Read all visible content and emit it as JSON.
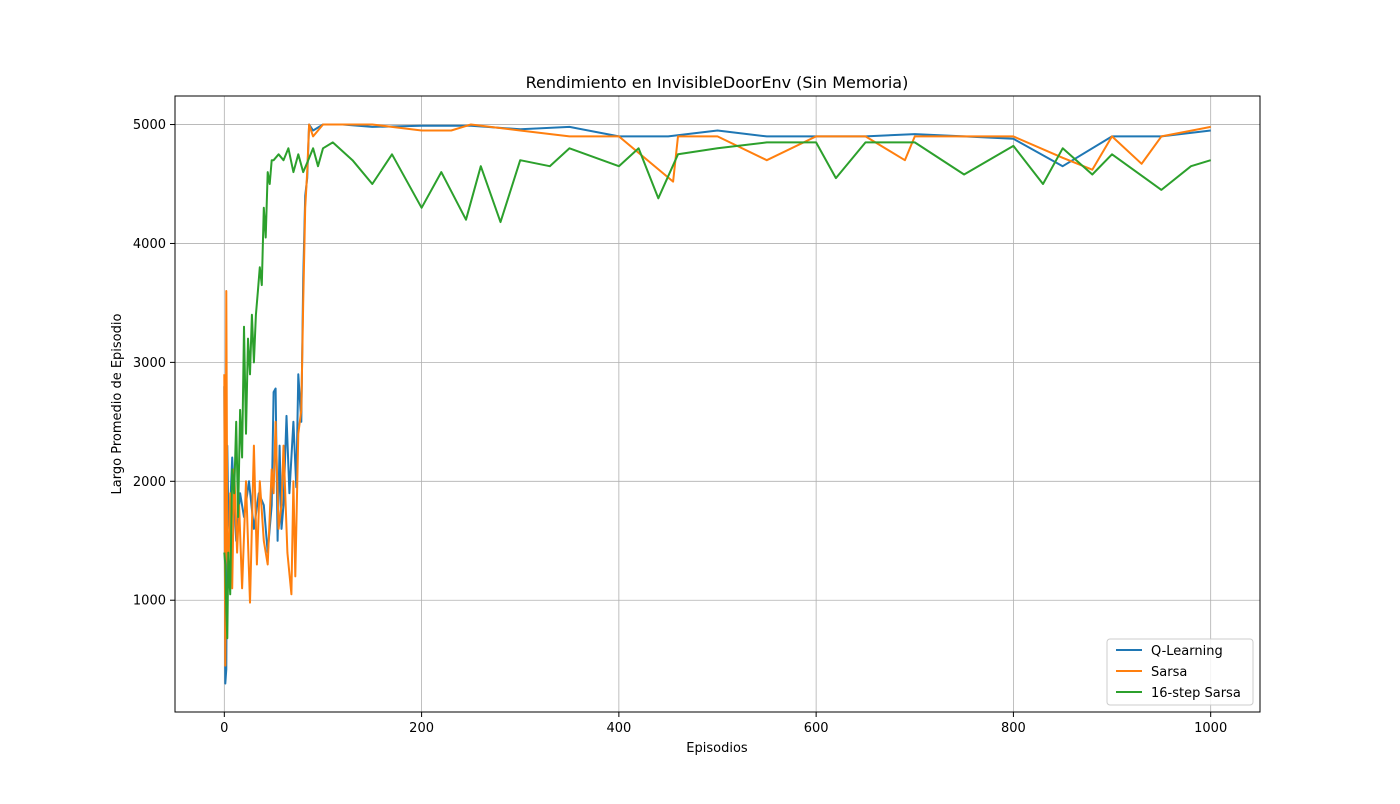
{
  "chart_data": {
    "type": "line",
    "title": "Rendimiento en InvisibleDoorEnv (Sin Memoria)",
    "xlabel": "Episodios",
    "ylabel": "Largo Promedio de Episodio",
    "xlim": [
      -50,
      1050
    ],
    "ylim": [
      60,
      5240
    ],
    "xticks": [
      0,
      200,
      400,
      600,
      800,
      1000
    ],
    "yticks": [
      1000,
      2000,
      3000,
      4000,
      5000
    ],
    "xtick_labels": [
      "0",
      "200",
      "400",
      "600",
      "800",
      "1000"
    ],
    "ytick_labels": [
      "1000",
      "2000",
      "3000",
      "4000",
      "5000"
    ],
    "grid": true,
    "legend_position": "lower-right",
    "series": [
      {
        "name": "Q-Learning",
        "color": "#1f77b4",
        "points": [
          [
            0,
            2800
          ],
          [
            1,
            300
          ],
          [
            2,
            420
          ],
          [
            3,
            2300
          ],
          [
            4,
            1700
          ],
          [
            5,
            1600
          ],
          [
            8,
            2200
          ],
          [
            12,
            1500
          ],
          [
            16,
            1900
          ],
          [
            20,
            1700
          ],
          [
            25,
            2000
          ],
          [
            30,
            1600
          ],
          [
            35,
            1900
          ],
          [
            40,
            1800
          ],
          [
            44,
            1400
          ],
          [
            48,
            1800
          ],
          [
            50,
            2750
          ],
          [
            52,
            2780
          ],
          [
            54,
            1500
          ],
          [
            56,
            2300
          ],
          [
            58,
            1600
          ],
          [
            60,
            1800
          ],
          [
            63,
            2550
          ],
          [
            66,
            1900
          ],
          [
            70,
            2500
          ],
          [
            73,
            1950
          ],
          [
            75,
            2900
          ],
          [
            78,
            2500
          ],
          [
            80,
            3700
          ],
          [
            82,
            4400
          ],
          [
            84,
            4550
          ],
          [
            86,
            5000
          ],
          [
            90,
            4950
          ],
          [
            100,
            5000
          ],
          [
            120,
            5000
          ],
          [
            150,
            4980
          ],
          [
            200,
            4990
          ],
          [
            250,
            4990
          ],
          [
            300,
            4960
          ],
          [
            350,
            4980
          ],
          [
            400,
            4900
          ],
          [
            450,
            4900
          ],
          [
            500,
            4950
          ],
          [
            550,
            4900
          ],
          [
            600,
            4900
          ],
          [
            650,
            4900
          ],
          [
            700,
            4920
          ],
          [
            750,
            4900
          ],
          [
            800,
            4880
          ],
          [
            850,
            4650
          ],
          [
            900,
            4900
          ],
          [
            950,
            4900
          ],
          [
            1000,
            4950
          ]
        ]
      },
      {
        "name": "Sarsa",
        "color": "#ff7f0e",
        "points": [
          [
            0,
            2900
          ],
          [
            1,
            450
          ],
          [
            2,
            3600
          ],
          [
            3,
            1500
          ],
          [
            4,
            1200
          ],
          [
            6,
            1900
          ],
          [
            8,
            1100
          ],
          [
            10,
            2100
          ],
          [
            13,
            1400
          ],
          [
            15,
            1800
          ],
          [
            18,
            1100
          ],
          [
            22,
            2000
          ],
          [
            26,
            980
          ],
          [
            30,
            2300
          ],
          [
            33,
            1300
          ],
          [
            36,
            2000
          ],
          [
            40,
            1500
          ],
          [
            44,
            1300
          ],
          [
            48,
            2100
          ],
          [
            50,
            1900
          ],
          [
            52,
            2500
          ],
          [
            55,
            1600
          ],
          [
            58,
            1800
          ],
          [
            60,
            2300
          ],
          [
            64,
            1400
          ],
          [
            68,
            1050
          ],
          [
            70,
            2000
          ],
          [
            72,
            1200
          ],
          [
            75,
            2400
          ],
          [
            78,
            2600
          ],
          [
            80,
            3500
          ],
          [
            82,
            4300
          ],
          [
            84,
            4600
          ],
          [
            86,
            5000
          ],
          [
            90,
            4900
          ],
          [
            100,
            5000
          ],
          [
            150,
            5000
          ],
          [
            200,
            4950
          ],
          [
            230,
            4950
          ],
          [
            250,
            5000
          ],
          [
            300,
            4950
          ],
          [
            350,
            4900
          ],
          [
            400,
            4900
          ],
          [
            455,
            4520
          ],
          [
            460,
            4900
          ],
          [
            500,
            4900
          ],
          [
            550,
            4700
          ],
          [
            600,
            4900
          ],
          [
            650,
            4900
          ],
          [
            690,
            4700
          ],
          [
            700,
            4900
          ],
          [
            750,
            4900
          ],
          [
            800,
            4900
          ],
          [
            850,
            4720
          ],
          [
            880,
            4620
          ],
          [
            900,
            4900
          ],
          [
            930,
            4670
          ],
          [
            950,
            4900
          ],
          [
            1000,
            4980
          ]
        ]
      },
      {
        "name": "16-step Sarsa",
        "color": "#2ca02c",
        "points": [
          [
            0,
            1400
          ],
          [
            1,
            1300
          ],
          [
            2,
            900
          ],
          [
            3,
            680
          ],
          [
            4,
            1400
          ],
          [
            6,
            1050
          ],
          [
            8,
            2100
          ],
          [
            10,
            1900
          ],
          [
            12,
            2500
          ],
          [
            14,
            1700
          ],
          [
            16,
            2600
          ],
          [
            18,
            2200
          ],
          [
            20,
            3300
          ],
          [
            22,
            2400
          ],
          [
            24,
            3200
          ],
          [
            26,
            2900
          ],
          [
            28,
            3400
          ],
          [
            30,
            3000
          ],
          [
            32,
            3400
          ],
          [
            34,
            3600
          ],
          [
            36,
            3800
          ],
          [
            38,
            3650
          ],
          [
            40,
            4300
          ],
          [
            42,
            4050
          ],
          [
            44,
            4600
          ],
          [
            46,
            4500
          ],
          [
            48,
            4700
          ],
          [
            50,
            4700
          ],
          [
            55,
            4750
          ],
          [
            60,
            4700
          ],
          [
            65,
            4800
          ],
          [
            70,
            4600
          ],
          [
            75,
            4750
          ],
          [
            80,
            4600
          ],
          [
            85,
            4700
          ],
          [
            90,
            4800
          ],
          [
            95,
            4650
          ],
          [
            100,
            4800
          ],
          [
            110,
            4850
          ],
          [
            130,
            4700
          ],
          [
            150,
            4500
          ],
          [
            170,
            4750
          ],
          [
            200,
            4300
          ],
          [
            220,
            4600
          ],
          [
            245,
            4200
          ],
          [
            260,
            4650
          ],
          [
            280,
            4180
          ],
          [
            300,
            4700
          ],
          [
            330,
            4650
          ],
          [
            350,
            4800
          ],
          [
            400,
            4650
          ],
          [
            420,
            4800
          ],
          [
            440,
            4380
          ],
          [
            460,
            4750
          ],
          [
            500,
            4800
          ],
          [
            550,
            4850
          ],
          [
            600,
            4850
          ],
          [
            620,
            4550
          ],
          [
            650,
            4850
          ],
          [
            700,
            4850
          ],
          [
            750,
            4580
          ],
          [
            800,
            4820
          ],
          [
            830,
            4500
          ],
          [
            850,
            4800
          ],
          [
            880,
            4580
          ],
          [
            900,
            4750
          ],
          [
            950,
            4450
          ],
          [
            980,
            4650
          ],
          [
            1000,
            4700
          ]
        ]
      }
    ]
  }
}
